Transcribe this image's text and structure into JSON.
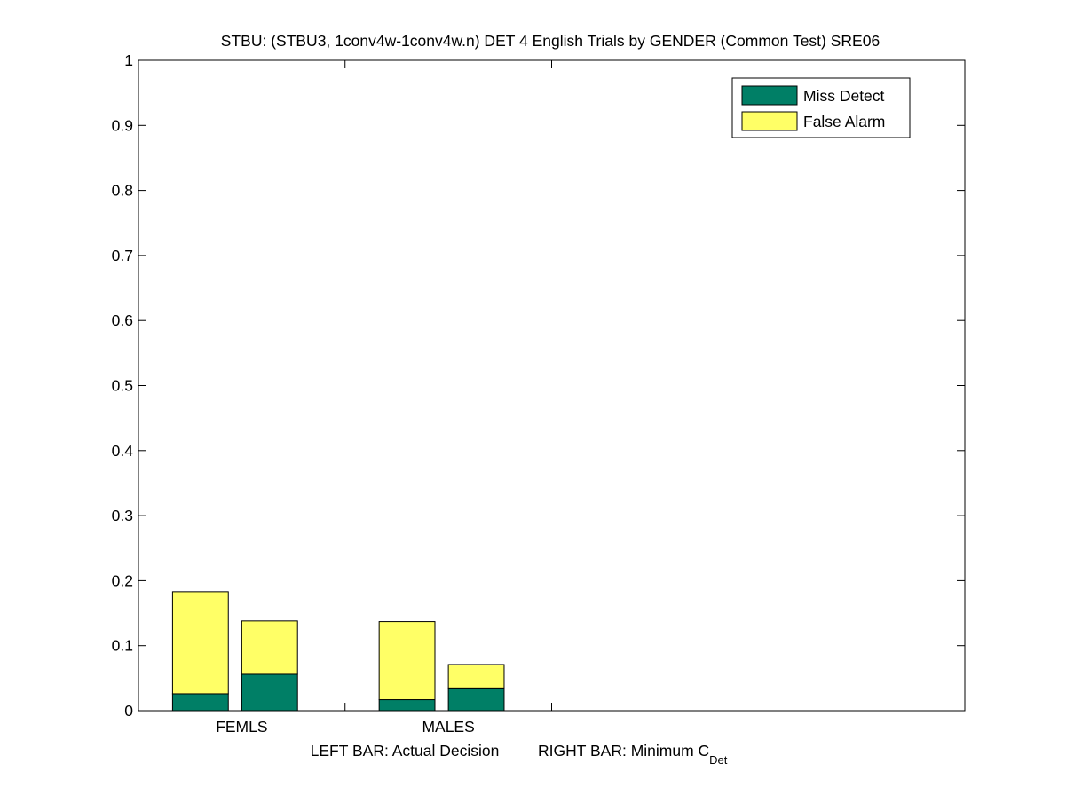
{
  "chart_data": {
    "type": "bar",
    "stacked": true,
    "title": "STBU: (STBU3, 1conv4w-1conv4w.n) DET 4 English Trials by GENDER (Common Test) SRE06",
    "categories": [
      "FEMLS",
      "MALES"
    ],
    "bars_per_category": [
      "Actual Decision",
      "Minimum C_Det"
    ],
    "series": [
      {
        "name": "Miss Detect",
        "color": "#007f66",
        "values": [
          [
            0.026,
            0.056
          ],
          [
            0.017,
            0.035
          ]
        ]
      },
      {
        "name": "False Alarm",
        "color": "#ffff66",
        "values": [
          [
            0.157,
            0.082
          ],
          [
            0.12,
            0.036
          ]
        ]
      }
    ],
    "totals": [
      [
        0.183,
        0.138
      ],
      [
        0.137,
        0.071
      ]
    ],
    "ylim": [
      0,
      1
    ],
    "yticks": [
      "0",
      "0.1",
      "0.2",
      "0.3",
      "0.4",
      "0.5",
      "0.6",
      "0.7",
      "0.8",
      "0.9",
      "1"
    ],
    "xlabel_left": "LEFT BAR: Actual Decision",
    "xlabel_right_main": "RIGHT BAR: Minimum C",
    "xlabel_right_sub": "Det",
    "legend_position": "top-right",
    "grid": false
  }
}
